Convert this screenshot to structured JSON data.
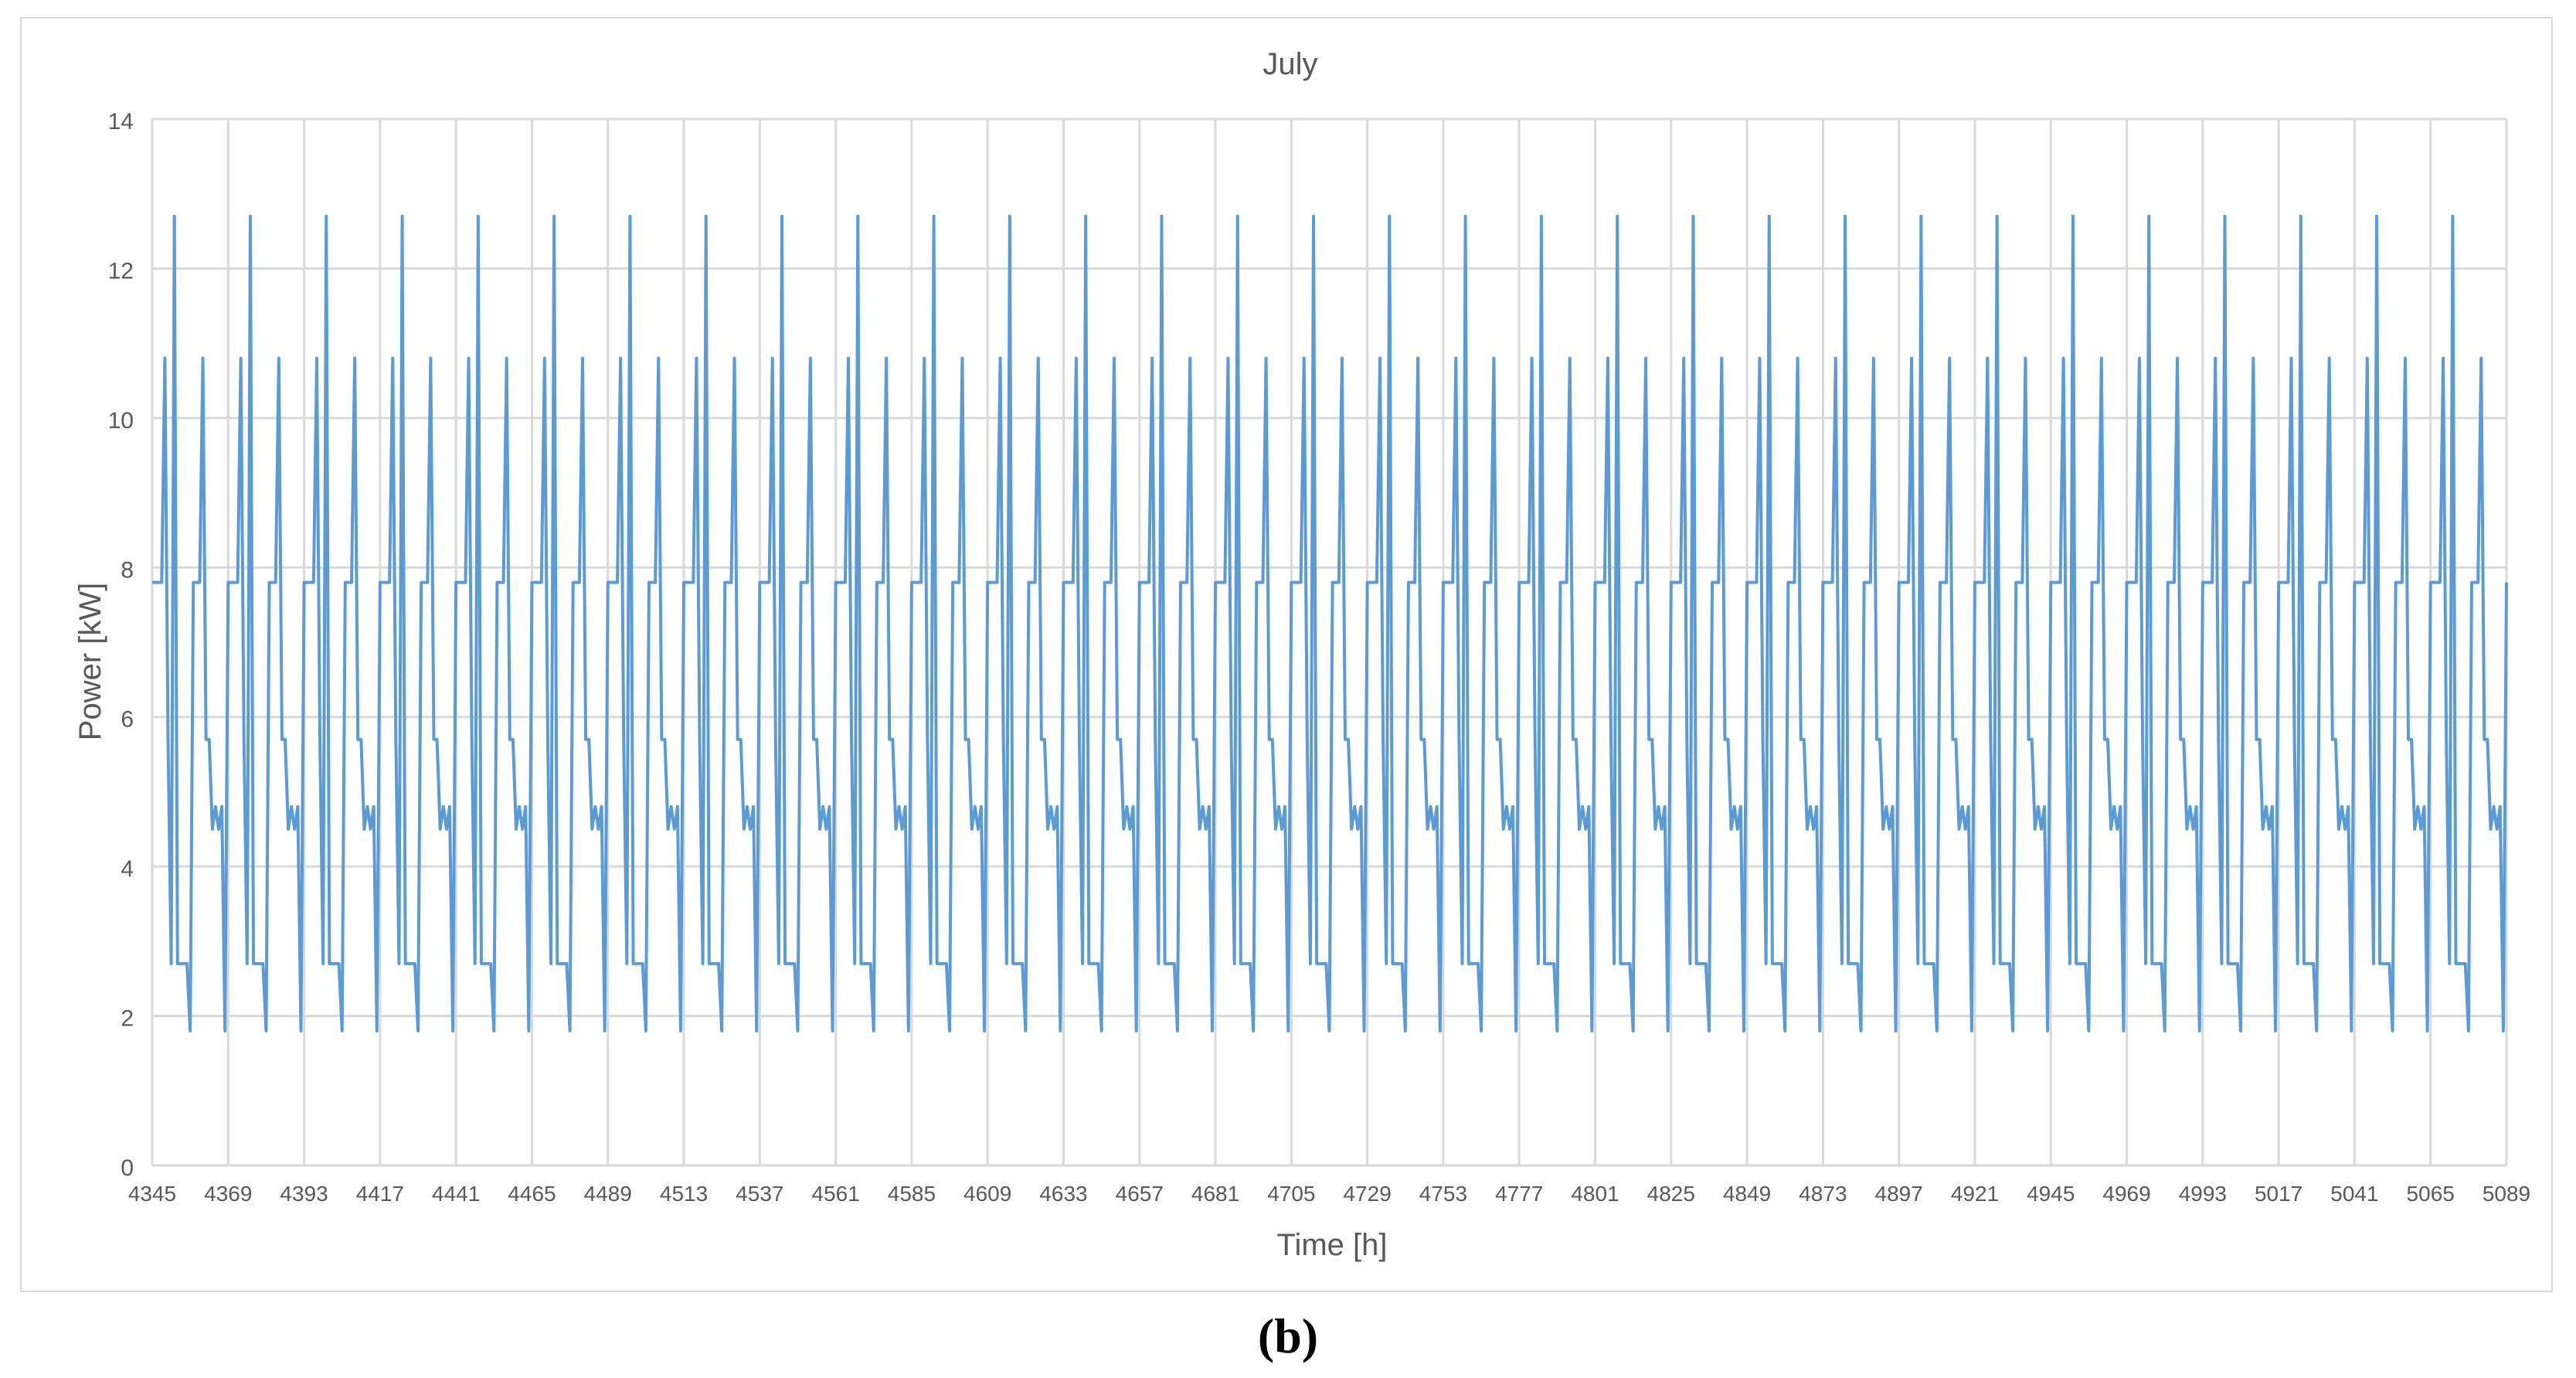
{
  "chart_data": {
    "type": "line",
    "title": "July",
    "xlabel": "Time [h]",
    "ylabel": "Power [kW]",
    "xlim": [
      4345,
      5089
    ],
    "ylim": [
      0,
      14
    ],
    "x_ticks": [
      4345,
      4369,
      4393,
      4417,
      4441,
      4465,
      4489,
      4513,
      4537,
      4561,
      4585,
      4609,
      4633,
      4657,
      4681,
      4705,
      4729,
      4753,
      4777,
      4801,
      4825,
      4849,
      4873,
      4897,
      4921,
      4945,
      4969,
      4993,
      5017,
      5041,
      5065,
      5089
    ],
    "y_ticks": [
      0,
      2,
      4,
      6,
      8,
      10,
      12,
      14
    ],
    "grid": true,
    "series_color": "#5b9bd5",
    "grid_color": "#d9d9d9",
    "daily_profile_hours": [
      0,
      1,
      2,
      3,
      4,
      5,
      6,
      7,
      8,
      9,
      10,
      11,
      12,
      13,
      14,
      15,
      16,
      17,
      18,
      19,
      20,
      21,
      22,
      23
    ],
    "daily_profile_kw": [
      7.8,
      7.8,
      7.8,
      7.8,
      10.8,
      5.7,
      2.7,
      12.7,
      2.7,
      2.7,
      2.7,
      2.7,
      1.8,
      7.8,
      7.8,
      7.8,
      10.8,
      5.7,
      5.7,
      4.5,
      4.8,
      4.5,
      4.8,
      1.8
    ],
    "period_hours": 24
  },
  "figure": {
    "panel_label": "(b)"
  }
}
